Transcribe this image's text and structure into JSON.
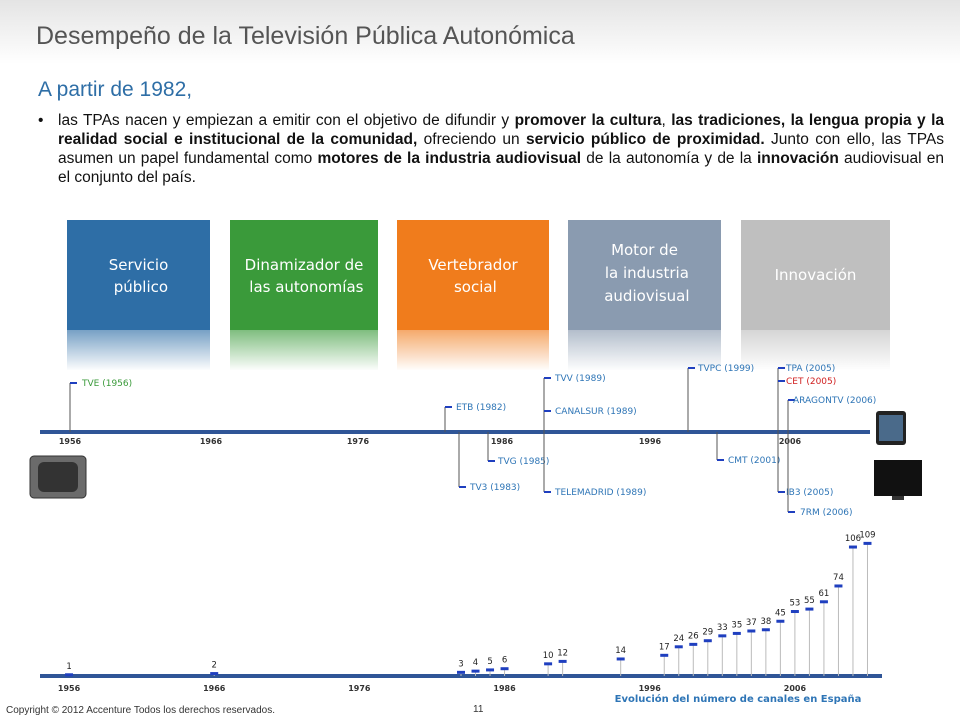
{
  "title": "Desempeño de la Televisión Pública Autonómica",
  "subtitle": "A partir de 1982,",
  "intro": [
    "las TPAs nacen y empiezan a emitir con el objetivo de difundir y ",
    "promover la cultura",
    ", ",
    "las tradiciones, la lengua propia y la realidad social e institucional de la comunidad,",
    " ofreciendo un ",
    "servicio público de proximidad.",
    " Junto con ello, las TPAs asumen un papel fundamental como ",
    "motores de la industria audiovisual",
    " de la autonomía y de la ",
    "innovación",
    " audiovisual en el conjunto del país."
  ],
  "roles": [
    "Servicio público",
    "Dinamizador de las autonomías",
    "Vertebrador social",
    "Motor de la industria audiovisual",
    "Innovación"
  ],
  "timeline": {
    "ticks": [
      "1956",
      "1966",
      "1976",
      "1986",
      "1996",
      "2006"
    ],
    "events": [
      "TVE (1956)",
      "ETB (1982)",
      "TV3 (1983)",
      "TVG (1985)",
      "TVV (1989)",
      "CANALSUR (1989)",
      "TELEMADRID (1989)",
      "TVPC (1999)",
      "CMT (2001)",
      "TPA (2005)",
      "CET (2005)",
      "IB3 (2005)",
      "ARAGONTV (2006)",
      "7RM (2006)"
    ]
  },
  "chart_data": {
    "type": "bar",
    "title": "Evolución del número de canales en España",
    "x": [
      1956,
      1966,
      1983,
      1984,
      1985,
      1986,
      1989,
      1990,
      1994,
      1997,
      1998,
      1999,
      2000,
      2001,
      2002,
      2003,
      2004,
      2005,
      2006,
      2007,
      2008,
      2009,
      2010,
      2011
    ],
    "values": [
      1,
      2,
      3,
      4,
      5,
      6,
      10,
      12,
      14,
      17,
      24,
      26,
      29,
      33,
      35,
      37,
      38,
      45,
      53,
      55,
      61,
      74,
      106,
      109
    ],
    "color": "#1f3fbf",
    "xlim": [
      1954,
      2012
    ],
    "xticks": [
      1956,
      1966,
      1976,
      1986,
      1996,
      2006
    ],
    "ylim": [
      0,
      120
    ]
  },
  "footer": {
    "copyright": "Copyright © 2012 Accenture  Todos los derechos reservados.",
    "page": "11"
  }
}
